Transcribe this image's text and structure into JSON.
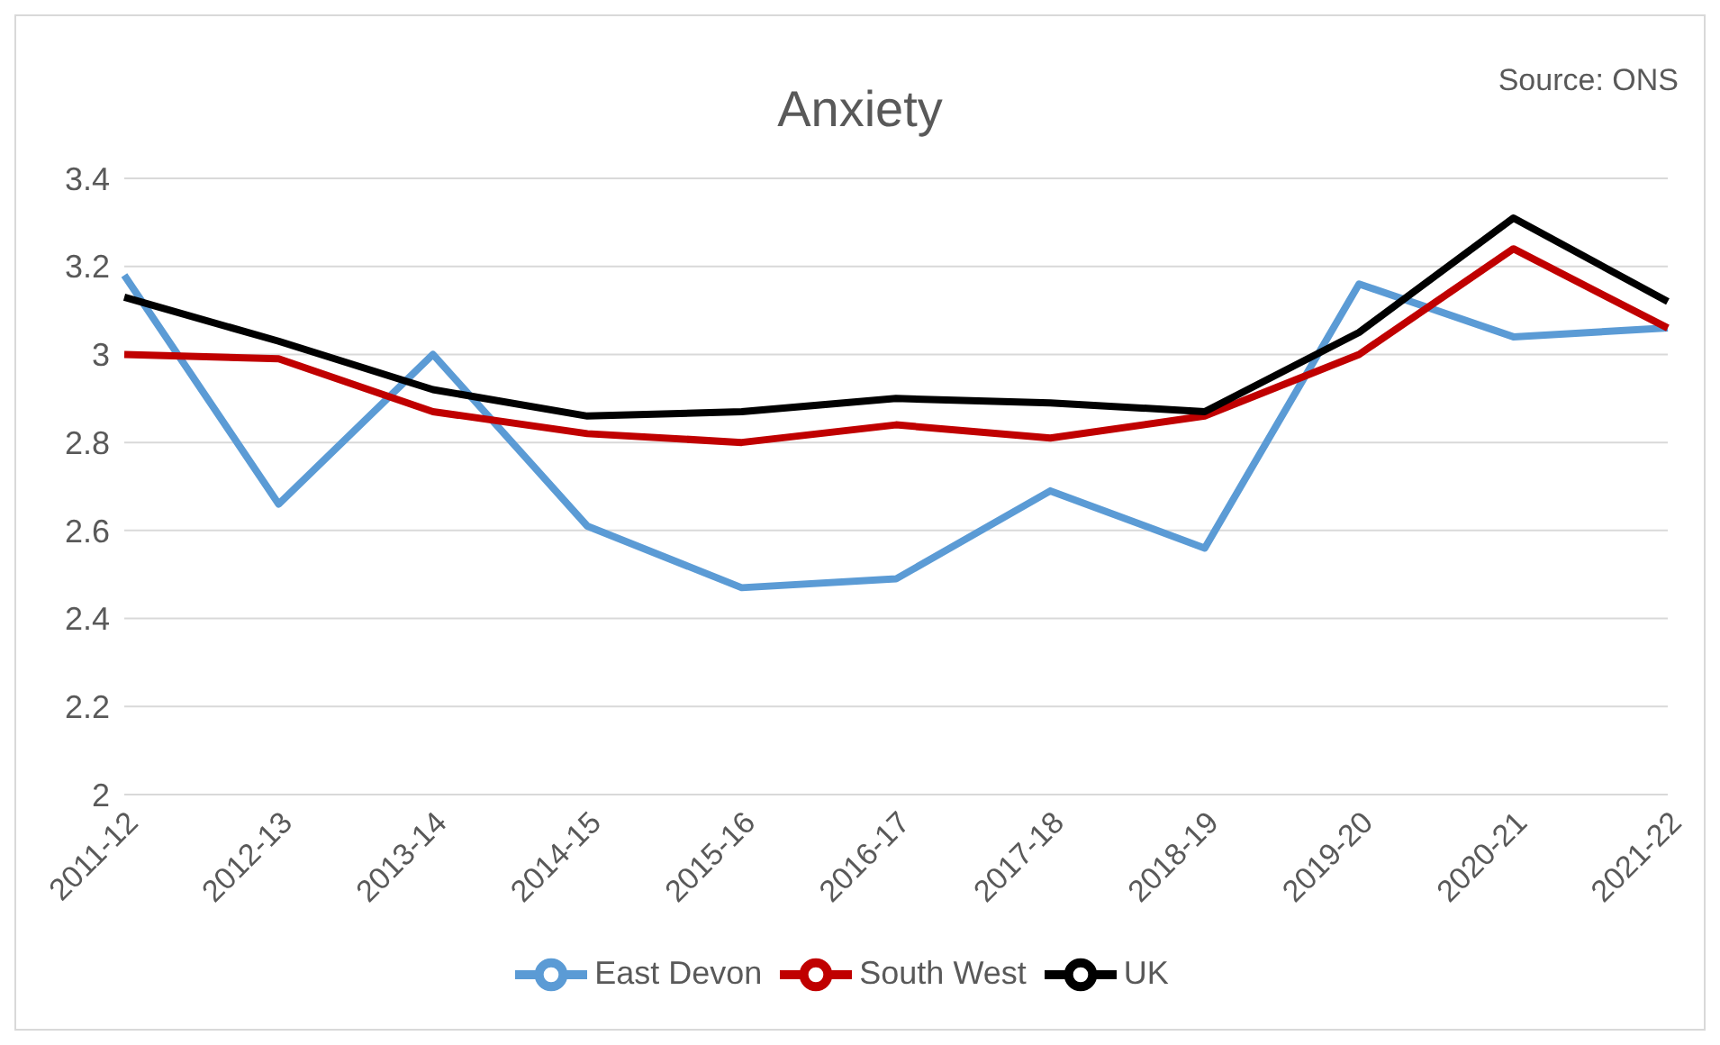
{
  "chart_data": {
    "type": "line",
    "title": "Anxiety",
    "annotations": [
      "Source: ONS"
    ],
    "categories": [
      "2011-12",
      "2012-13",
      "2013-14",
      "2014-15",
      "2015-16",
      "2016-17",
      "2017-18",
      "2018-19",
      "2019-20",
      "2020-21",
      "2021-22"
    ],
    "series": [
      {
        "name": "East Devon",
        "color": "#5b9bd5",
        "values": [
          3.18,
          2.66,
          3.0,
          2.61,
          2.47,
          2.49,
          2.69,
          2.56,
          3.16,
          3.04,
          3.06
        ]
      },
      {
        "name": "South West",
        "color": "#c00000",
        "values": [
          3.0,
          2.99,
          2.87,
          2.82,
          2.8,
          2.84,
          2.81,
          2.86,
          3.0,
          3.24,
          3.06
        ]
      },
      {
        "name": "UK",
        "color": "#000000",
        "values": [
          3.13,
          3.03,
          2.92,
          2.86,
          2.87,
          2.9,
          2.89,
          2.87,
          3.05,
          3.31,
          3.12
        ]
      }
    ],
    "ylim": [
      2,
      3.4
    ],
    "yticks": [
      2,
      2.2,
      2.4,
      2.6,
      2.8,
      3,
      3.2,
      3.4
    ],
    "grid": "y",
    "legend": "bottom",
    "marker": "none",
    "line_style": "solid"
  }
}
